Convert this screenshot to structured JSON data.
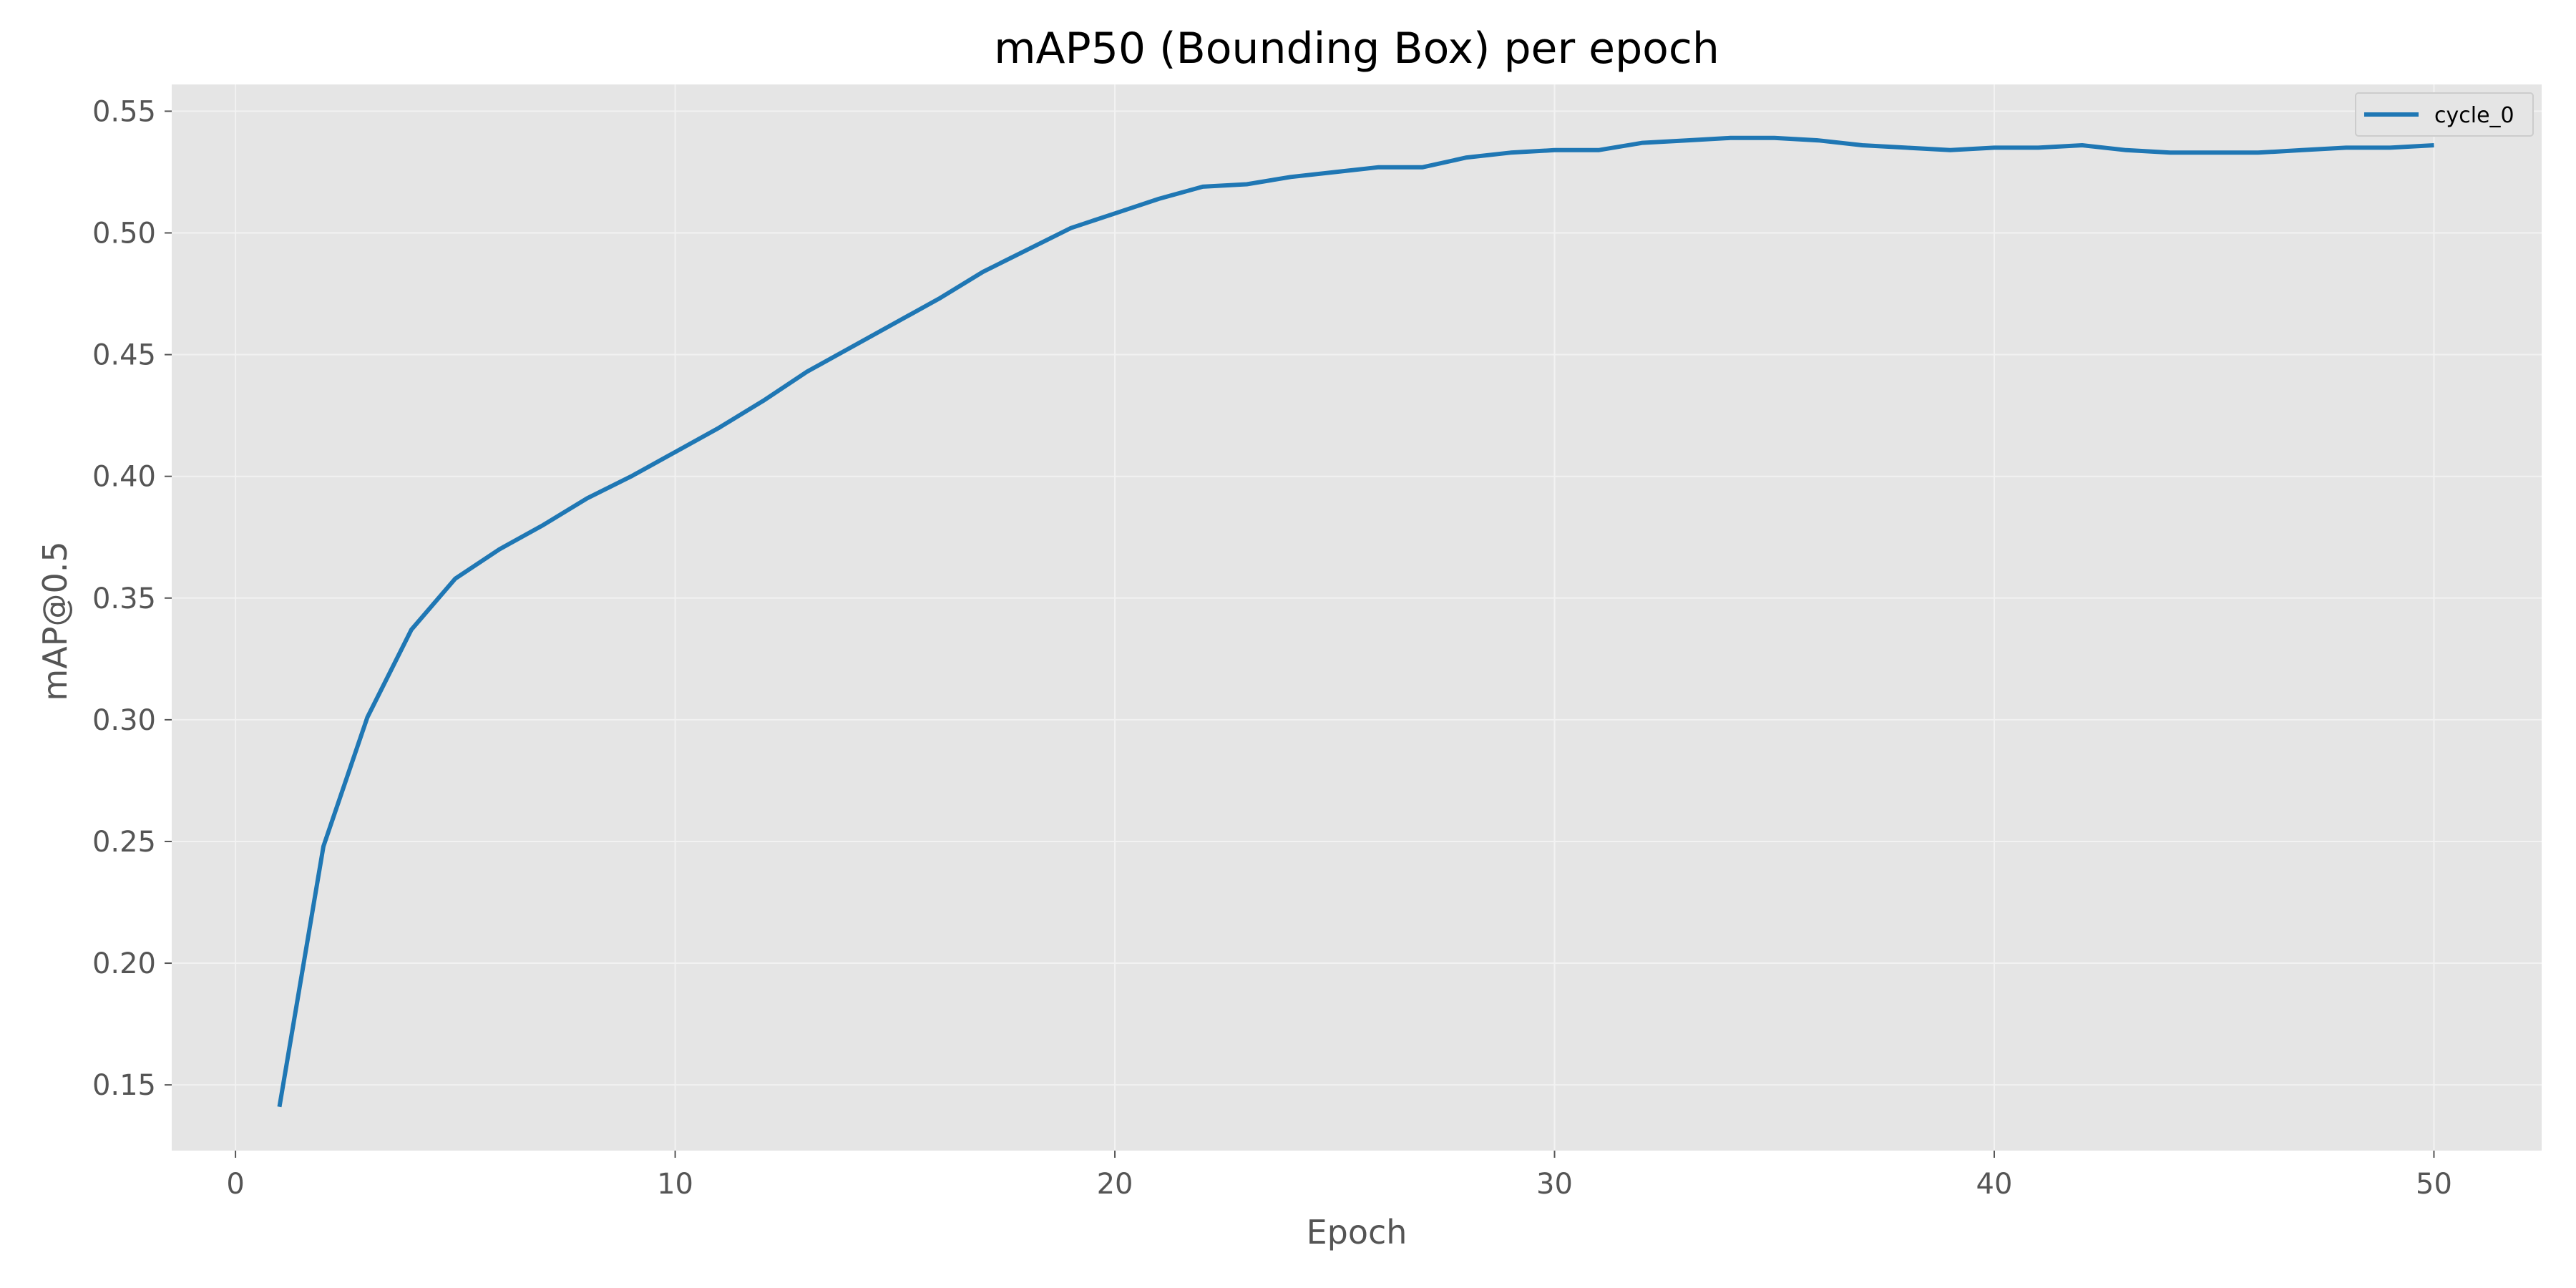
{
  "chart_data": {
    "type": "line",
    "title": "mAP50 (Bounding Box) per epoch",
    "xlabel": "Epoch",
    "ylabel": "mAP@0.5",
    "xlim": [
      -1.45,
      52.45
    ],
    "ylim": [
      0.123,
      0.561
    ],
    "xticks": [
      0,
      10,
      20,
      30,
      40,
      50
    ],
    "xtick_labels": [
      "0",
      "10",
      "20",
      "30",
      "40",
      "50"
    ],
    "yticks": [
      0.15,
      0.2,
      0.25,
      0.3,
      0.35,
      0.4,
      0.45,
      0.5,
      0.55
    ],
    "ytick_labels": [
      "0.15",
      "0.20",
      "0.25",
      "0.30",
      "0.35",
      "0.40",
      "0.45",
      "0.50",
      "0.55"
    ],
    "grid": true,
    "legend_position": "top-right",
    "series": [
      {
        "name": "cycle_0",
        "color": "#1f77b4",
        "x": [
          1,
          2,
          3,
          4,
          5,
          6,
          7,
          8,
          9,
          10,
          11,
          12,
          13,
          14,
          15,
          16,
          17,
          18,
          19,
          20,
          21,
          22,
          23,
          24,
          25,
          26,
          27,
          28,
          29,
          30,
          31,
          32,
          33,
          34,
          35,
          36,
          37,
          38,
          39,
          40,
          41,
          42,
          43,
          44,
          45,
          46,
          47,
          48,
          49,
          50
        ],
        "y": [
          0.141,
          0.248,
          0.301,
          0.337,
          0.358,
          0.37,
          0.38,
          0.391,
          0.4,
          0.41,
          0.42,
          0.431,
          0.443,
          0.453,
          0.463,
          0.473,
          0.484,
          0.493,
          0.502,
          0.508,
          0.514,
          0.519,
          0.52,
          0.523,
          0.525,
          0.527,
          0.527,
          0.531,
          0.533,
          0.534,
          0.534,
          0.537,
          0.538,
          0.539,
          0.539,
          0.538,
          0.536,
          0.535,
          0.534,
          0.535,
          0.535,
          0.536,
          0.534,
          0.533,
          0.533,
          0.533,
          0.534,
          0.535,
          0.535,
          0.536
        ]
      }
    ],
    "colors": {
      "plot_background": "#e5e5e5",
      "grid": "#f2f2f2",
      "tick_text": "#555555",
      "title_text": "#000000"
    }
  }
}
